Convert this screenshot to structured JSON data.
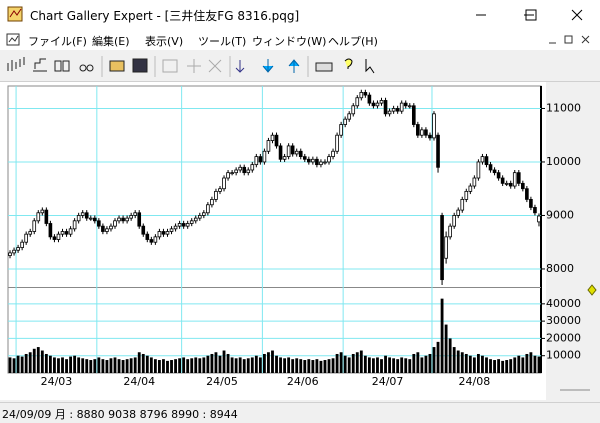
{
  "window": {
    "title": "Chart Gallery Expert - [三井住友FG 8316.pqg]",
    "menu": [
      "ファイル(F)",
      "編集(E)",
      "表示(V)",
      "ツール(T)",
      "ウィンドウ(W)",
      "ヘルプ(H)"
    ],
    "status": "24/09/09 月 : 8880 9038 8796 8990 : 8944"
  },
  "chart_data": {
    "type": "candlestick",
    "xticks": [
      {
        "value": 2,
        "label": "24/03"
      },
      {
        "value": 22,
        "label": "24/04"
      },
      {
        "value": 43,
        "label": "24/05"
      },
      {
        "value": 63,
        "label": "24/06"
      },
      {
        "value": 83,
        "label": "24/07"
      },
      {
        "value": 105,
        "label": "24/08"
      }
    ],
    "ylim": [
      7700,
      11420
    ],
    "yticks": [
      8000,
      9000,
      10000,
      11000
    ],
    "volume_lim": [
      0,
      48000
    ],
    "volume_ticks": [
      10000,
      20000,
      30000,
      40000
    ],
    "grid": true,
    "grid_color": "#80e8f0",
    "up_color": "#ffffff",
    "down_color": "#000000",
    "volume_color": "#000000",
    "open": [
      8250,
      8300,
      8350,
      8400,
      8500,
      8650,
      8700,
      8900,
      9050,
      9100,
      8850,
      8600,
      8550,
      8650,
      8700,
      8650,
      8750,
      8900,
      9000,
      9050,
      8950,
      8950,
      8900,
      8800,
      8700,
      8750,
      8800,
      8900,
      8950,
      8900,
      8950,
      9000,
      9050,
      8800,
      8650,
      8550,
      8500,
      8600,
      8700,
      8650,
      8700,
      8750,
      8800,
      8850,
      8800,
      8850,
      8900,
      8950,
      9000,
      9050,
      9200,
      9300,
      9450,
      9500,
      9700,
      9800,
      9800,
      9850,
      9900,
      9800,
      9850,
      9950,
      10100,
      10000,
      10200,
      10400,
      10500,
      10300,
      10050,
      10100,
      10300,
      10150,
      10200,
      10100,
      10050,
      10000,
      10050,
      9950,
      10000,
      10000,
      10100,
      10200,
      10500,
      10700,
      10800,
      10900,
      11050,
      11200,
      11300,
      11250,
      11100,
      11050,
      11100,
      11150,
      10900,
      10950,
      11000,
      10950,
      11100,
      11050,
      11050,
      10700,
      10500,
      10600,
      10500,
      10450,
      10500,
      9000,
      8200,
      8600,
      8800,
      9000,
      9100,
      9300,
      9450,
      9550,
      9700,
      10000,
      10100,
      9950,
      9850,
      9800,
      9700,
      9600,
      9600,
      9550,
      9800,
      9600,
      9500,
      9300,
      9150,
      8880
    ],
    "high": [
      8350,
      8400,
      8450,
      8550,
      8700,
      8750,
      8950,
      9100,
      9150,
      9150,
      8900,
      8650,
      8700,
      8750,
      8750,
      8800,
      8950,
      9050,
      9100,
      9100,
      9000,
      9000,
      8950,
      8850,
      8800,
      8850,
      8950,
      9000,
      9000,
      9000,
      9050,
      9100,
      9100,
      8850,
      8700,
      8600,
      8650,
      8750,
      8750,
      8750,
      8800,
      8850,
      8900,
      8900,
      8900,
      8950,
      9000,
      9050,
      9100,
      9250,
      9350,
      9500,
      9550,
      9750,
      9850,
      9850,
      9900,
      9950,
      9950,
      9900,
      10000,
      10150,
      10150,
      10250,
      10450,
      10550,
      10550,
      10350,
      10150,
      10350,
      10350,
      10250,
      10250,
      10150,
      10100,
      10100,
      10100,
      10050,
      10050,
      10150,
      10250,
      10550,
      10750,
      10850,
      10950,
      11100,
      11250,
      11350,
      11350,
      11300,
      11150,
      11150,
      11200,
      11200,
      11000,
      11050,
      11050,
      11150,
      11150,
      11100,
      11100,
      10750,
      10650,
      10650,
      10550,
      10950,
      10550,
      9050,
      8700,
      8850,
      9050,
      9150,
      9350,
      9500,
      9600,
      9750,
      10050,
      10150,
      10150,
      10000,
      9900,
      9850,
      9750,
      9650,
      9650,
      9850,
      9850,
      9650,
      9550,
      9350,
      9200,
      9038
    ],
    "low": [
      8200,
      8250,
      8300,
      8350,
      8450,
      8600,
      8650,
      8850,
      9000,
      8800,
      8550,
      8500,
      8500,
      8600,
      8600,
      8600,
      8700,
      8850,
      8950,
      8900,
      8900,
      8850,
      8750,
      8650,
      8650,
      8700,
      8750,
      8850,
      8850,
      8850,
      8900,
      8950,
      8750,
      8600,
      8500,
      8450,
      8450,
      8550,
      8600,
      8600,
      8650,
      8700,
      8750,
      8750,
      8750,
      8800,
      8850,
      8900,
      8950,
      9000,
      9150,
      9250,
      9400,
      9450,
      9650,
      9750,
      9750,
      9800,
      9750,
      9750,
      9800,
      9900,
      9950,
      9950,
      10150,
      10350,
      10250,
      10000,
      10000,
      10050,
      10100,
      10100,
      10050,
      10000,
      9950,
      9950,
      9900,
      9900,
      9950,
      9950,
      10050,
      10150,
      10450,
      10650,
      10750,
      10850,
      11000,
      11150,
      11200,
      11050,
      11000,
      11000,
      11050,
      10850,
      10850,
      10900,
      10900,
      10900,
      11000,
      11000,
      10650,
      10450,
      10450,
      10450,
      10400,
      10400,
      9800,
      7700,
      8100,
      8550,
      8750,
      8950,
      9050,
      9250,
      9400,
      9500,
      9650,
      9950,
      9900,
      9800,
      9750,
      9650,
      9550,
      9550,
      9500,
      9500,
      9550,
      9450,
      9250,
      9100,
      9000,
      8796
    ],
    "close": [
      8300,
      8350,
      8400,
      8500,
      8650,
      8700,
      8900,
      9050,
      9100,
      8850,
      8600,
      8550,
      8650,
      8700,
      8650,
      8750,
      8900,
      9000,
      9050,
      8950,
      8950,
      8900,
      8800,
      8700,
      8750,
      8800,
      8900,
      8950,
      8900,
      8950,
      9000,
      9050,
      8800,
      8650,
      8550,
      8500,
      8600,
      8700,
      8650,
      8700,
      8750,
      8800,
      8850,
      8800,
      8850,
      8900,
      8950,
      9000,
      9050,
      9200,
      9300,
      9450,
      9500,
      9700,
      9800,
      9800,
      9850,
      9900,
      9800,
      9850,
      9950,
      10100,
      10000,
      10200,
      10400,
      10500,
      10300,
      10050,
      10100,
      10300,
      10150,
      10200,
      10100,
      10050,
      10000,
      10050,
      9950,
      10000,
      10000,
      10100,
      10200,
      10500,
      10700,
      10800,
      10900,
      11050,
      11200,
      11300,
      11250,
      11100,
      11050,
      11100,
      11150,
      10900,
      10950,
      11000,
      10950,
      11100,
      11050,
      11050,
      10700,
      10500,
      10600,
      10500,
      10450,
      10900,
      9900,
      7800,
      8600,
      8800,
      9000,
      9100,
      9300,
      9450,
      9550,
      9700,
      10000,
      10100,
      9950,
      9850,
      9800,
      9700,
      9600,
      9600,
      9550,
      9800,
      9600,
      9500,
      9300,
      9150,
      9050,
      8990
    ],
    "volume": [
      9000,
      8500,
      10000,
      9500,
      11000,
      12000,
      14000,
      15000,
      13000,
      11000,
      10000,
      9000,
      8500,
      9000,
      8000,
      9500,
      10000,
      9000,
      8500,
      8000,
      7500,
      8000,
      9000,
      8000,
      7500,
      8500,
      9000,
      8000,
      7500,
      8000,
      8500,
      9000,
      12000,
      11000,
      10000,
      9000,
      8000,
      7500,
      8000,
      7000,
      7500,
      8000,
      8500,
      9000,
      8000,
      8500,
      9000,
      8500,
      9000,
      10000,
      11000,
      12000,
      10000,
      13000,
      11000,
      9000,
      8500,
      9000,
      8000,
      8500,
      9000,
      10000,
      9000,
      11000,
      12000,
      13000,
      10000,
      9000,
      8500,
      9000,
      8000,
      8500,
      8000,
      7500,
      8000,
      7500,
      8000,
      7000,
      7500,
      8000,
      8500,
      11000,
      12000,
      10000,
      9000,
      11000,
      12000,
      13000,
      10000,
      9000,
      8500,
      9000,
      8000,
      10000,
      9000,
      8500,
      8000,
      9000,
      8500,
      8000,
      11000,
      12000,
      9000,
      10000,
      11000,
      15000,
      18000,
      43000,
      28000,
      20000,
      15000,
      13000,
      12000,
      11000,
      10000,
      9000,
      11000,
      10000,
      9000,
      8000,
      7500,
      8000,
      7000,
      7500,
      8000,
      9000,
      10000,
      9000,
      11000,
      12000,
      10000,
      9500
    ]
  }
}
